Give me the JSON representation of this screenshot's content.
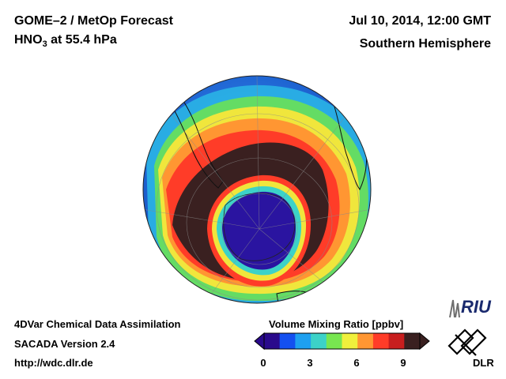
{
  "header": {
    "title": "GOME–2 / MetOp Forecast",
    "species_prefix": "HNO",
    "species_subscript": "3",
    "species_suffix": " at 55.4 hPa",
    "date": "Jul 10, 2014, 12:00 GMT",
    "hemisphere": "Southern Hemisphere"
  },
  "footer": {
    "line1": "4DVar Chemical Data Assimilation",
    "line2": "SACADA Version 2.4",
    "line3": "http://wdc.dlr.de"
  },
  "colorbar": {
    "title": "Volume Mixing Ratio [ppbv]",
    "ticks": [
      "0",
      "3",
      "6",
      "9"
    ],
    "min": 0,
    "max": 10,
    "colors": [
      "#2a0a8c",
      "#1450f0",
      "#1ea0f0",
      "#3cd2c8",
      "#78e650",
      "#f0f03c",
      "#ff9632",
      "#ff3c28",
      "#c81e1e",
      "#3a2020"
    ]
  },
  "logos": {
    "riu": "RIU",
    "dlr": "DLR"
  },
  "map": {
    "projection": "orthographic",
    "center": "South Pole",
    "colors": {
      "ocean": "#1e64d2",
      "vortex_core": "#2a14a0",
      "collar": "#3a2020",
      "ring": "#ff3c28"
    }
  }
}
